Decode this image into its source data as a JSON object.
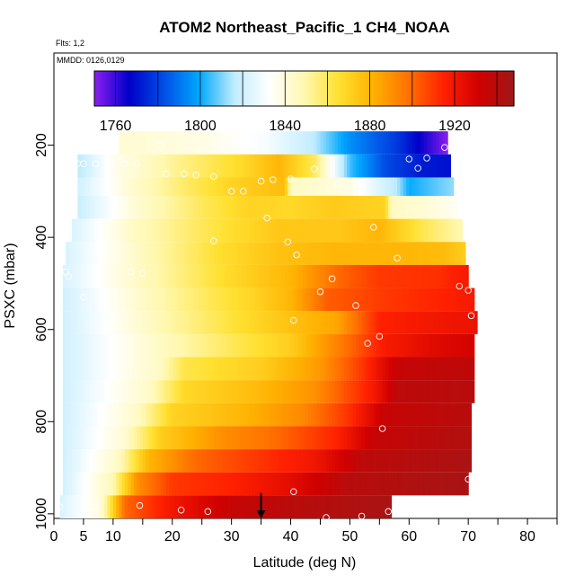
{
  "chart_data": {
    "type": "heatmap",
    "title": "ATOM2 Northeast_Pacific_1 CH4_NOAA",
    "flights_note": "Flts: 1,2",
    "dates_note": "MMDD: 0126,0129",
    "xlabel": "Latitude (deg N)",
    "ylabel": "PSXC (mbar)",
    "xlim": [
      0,
      85
    ],
    "ylim": [
      1010,
      0
    ],
    "x_ticks": [
      0,
      5,
      10,
      20,
      30,
      40,
      50,
      60,
      70,
      80
    ],
    "y_ticks": [
      200,
      400,
      600,
      800,
      1000
    ],
    "colorbar": {
      "min": 1750,
      "max": 1948,
      "tick_values": [
        1760,
        1800,
        1840,
        1880,
        1920
      ],
      "tick_labels": [
        "1760",
        "1800",
        "1840",
        "1880",
        "1920"
      ],
      "colors": [
        "#8b1ef0",
        "#0000c8",
        "#0050e6",
        "#00a8ff",
        "#c0ecff",
        "#ffffff",
        "#fff8b0",
        "#ffe030",
        "#ffb000",
        "#ff7000",
        "#ff2000",
        "#d00000",
        "#a01818"
      ]
    },
    "bands": [
      {
        "p_top": 170,
        "p_bot": 220,
        "lat_start": 11,
        "lat_end": 66.5,
        "stops": [
          [
            11,
            1842
          ],
          [
            25,
            1838
          ],
          [
            36,
            1830
          ],
          [
            44,
            1816
          ],
          [
            50,
            1795
          ],
          [
            58,
            1778
          ],
          [
            63,
            1762
          ],
          [
            66.5,
            1750
          ]
        ]
      },
      {
        "p_top": 220,
        "p_bot": 270,
        "lat_start": 4,
        "lat_end": 67,
        "stops": [
          [
            4,
            1815
          ],
          [
            10,
            1836
          ],
          [
            22,
            1855
          ],
          [
            32,
            1868
          ],
          [
            38,
            1880
          ],
          [
            44,
            1860
          ],
          [
            50,
            1805
          ],
          [
            56,
            1782
          ],
          [
            62,
            1772
          ],
          [
            67,
            1770
          ]
        ]
      },
      {
        "p_top": 270,
        "p_bot": 310,
        "lat_start": 4,
        "lat_end": 67.5,
        "stops": [
          [
            4,
            1820
          ],
          [
            12,
            1840
          ],
          [
            22,
            1858
          ],
          [
            30,
            1870
          ],
          [
            39,
            1878
          ],
          [
            40,
            1845
          ],
          [
            50,
            1838
          ],
          [
            58,
            1815
          ],
          [
            60,
            1800
          ],
          [
            67.5,
            1812
          ]
        ]
      },
      {
        "p_top": 310,
        "p_bot": 360,
        "lat_start": 4,
        "lat_end": 68,
        "stops": [
          [
            4,
            1818
          ],
          [
            14,
            1842
          ],
          [
            25,
            1860
          ],
          [
            33,
            1870
          ],
          [
            40,
            1868
          ],
          [
            47,
            1873
          ],
          [
            56,
            1870
          ],
          [
            57,
            1845
          ],
          [
            64,
            1840
          ],
          [
            68,
            1835
          ]
        ]
      },
      {
        "p_top": 360,
        "p_bot": 410,
        "lat_start": 3,
        "lat_end": 69,
        "stops": [
          [
            3,
            1822
          ],
          [
            14,
            1846
          ],
          [
            28,
            1864
          ],
          [
            38,
            1874
          ],
          [
            48,
            1874
          ],
          [
            55,
            1880
          ],
          [
            62,
            1862
          ],
          [
            69,
            1848
          ]
        ]
      },
      {
        "p_top": 410,
        "p_bot": 460,
        "lat_start": 2,
        "lat_end": 69.5,
        "stops": [
          [
            2,
            1822
          ],
          [
            15,
            1846
          ],
          [
            28,
            1866
          ],
          [
            38,
            1876
          ],
          [
            48,
            1880
          ],
          [
            58,
            1880
          ],
          [
            66,
            1878
          ],
          [
            69.5,
            1872
          ]
        ]
      },
      {
        "p_top": 460,
        "p_bot": 510,
        "lat_start": 1.5,
        "lat_end": 70,
        "stops": [
          [
            1.5,
            1822
          ],
          [
            15,
            1846
          ],
          [
            30,
            1868
          ],
          [
            40,
            1880
          ],
          [
            48,
            1900
          ],
          [
            55,
            1910
          ],
          [
            65,
            1912
          ],
          [
            70,
            1918
          ]
        ]
      },
      {
        "p_top": 510,
        "p_bot": 560,
        "lat_start": 1.5,
        "lat_end": 71,
        "stops": [
          [
            1.5,
            1820
          ],
          [
            16,
            1846
          ],
          [
            26,
            1860
          ],
          [
            34,
            1870
          ],
          [
            40,
            1880
          ],
          [
            46,
            1902
          ],
          [
            56,
            1910
          ],
          [
            66,
            1915
          ],
          [
            71,
            1918
          ]
        ]
      },
      {
        "p_top": 560,
        "p_bot": 610,
        "lat_start": 1.5,
        "lat_end": 71.5,
        "stops": [
          [
            1.5,
            1820
          ],
          [
            18,
            1848
          ],
          [
            30,
            1864
          ],
          [
            40,
            1876
          ],
          [
            48,
            1885
          ],
          [
            55,
            1915
          ],
          [
            65,
            1920
          ],
          [
            71.5,
            1922
          ]
        ]
      },
      {
        "p_top": 610,
        "p_bot": 660,
        "lat_start": 1.5,
        "lat_end": 71,
        "stops": [
          [
            1.5,
            1820
          ],
          [
            18,
            1845
          ],
          [
            30,
            1860
          ],
          [
            40,
            1872
          ],
          [
            50,
            1900
          ],
          [
            56,
            1918
          ],
          [
            64,
            1926
          ],
          [
            71,
            1930
          ]
        ]
      },
      {
        "p_top": 660,
        "p_bot": 710,
        "lat_start": 1.5,
        "lat_end": 71,
        "stops": [
          [
            1.5,
            1820
          ],
          [
            18,
            1845
          ],
          [
            22,
            1862
          ],
          [
            35,
            1872
          ],
          [
            45,
            1888
          ],
          [
            52,
            1910
          ],
          [
            58,
            1935
          ],
          [
            71,
            1938
          ]
        ]
      },
      {
        "p_top": 710,
        "p_bot": 760,
        "lat_start": 1.5,
        "lat_end": 71,
        "stops": [
          [
            1.5,
            1820
          ],
          [
            16,
            1844
          ],
          [
            22,
            1868
          ],
          [
            34,
            1878
          ],
          [
            44,
            1890
          ],
          [
            54,
            1918
          ],
          [
            58,
            1938
          ],
          [
            71,
            1940
          ]
        ]
      },
      {
        "p_top": 760,
        "p_bot": 810,
        "lat_start": 1.5,
        "lat_end": 70.5,
        "stops": [
          [
            1.5,
            1820
          ],
          [
            14,
            1844
          ],
          [
            20,
            1870
          ],
          [
            32,
            1880
          ],
          [
            42,
            1892
          ],
          [
            50,
            1912
          ],
          [
            56,
            1935
          ],
          [
            70.5,
            1940
          ]
        ]
      },
      {
        "p_top": 810,
        "p_bot": 860,
        "lat_start": 1.5,
        "lat_end": 70.5,
        "stops": [
          [
            1.5,
            1820
          ],
          [
            12,
            1842
          ],
          [
            18,
            1872
          ],
          [
            28,
            1890
          ],
          [
            38,
            1900
          ],
          [
            48,
            1915
          ],
          [
            54,
            1935
          ],
          [
            70.5,
            1942
          ]
        ]
      },
      {
        "p_top": 860,
        "p_bot": 910,
        "lat_start": 1.5,
        "lat_end": 70.5,
        "stops": [
          [
            1.5,
            1820
          ],
          [
            11,
            1845
          ],
          [
            16,
            1880
          ],
          [
            24,
            1900
          ],
          [
            34,
            1910
          ],
          [
            44,
            1920
          ],
          [
            52,
            1938
          ],
          [
            70.5,
            1944
          ]
        ]
      },
      {
        "p_top": 910,
        "p_bot": 960,
        "lat_start": 1.5,
        "lat_end": 70,
        "stops": [
          [
            1.5,
            1820
          ],
          [
            10,
            1848
          ],
          [
            14,
            1890
          ],
          [
            20,
            1910
          ],
          [
            30,
            1915
          ],
          [
            40,
            1925
          ],
          [
            50,
            1940
          ],
          [
            70,
            1945
          ]
        ]
      },
      {
        "p_top": 960,
        "p_bot": 1010,
        "lat_start": 1,
        "lat_end": 57,
        "stops": [
          [
            1,
            1822
          ],
          [
            8,
            1840
          ],
          [
            12,
            1900
          ],
          [
            20,
            1920
          ],
          [
            30,
            1935
          ],
          [
            42,
            1940
          ],
          [
            57,
            1945
          ]
        ]
      }
    ],
    "observations": [
      {
        "lat": 30,
        "p": 180
      },
      {
        "lat": 18,
        "p": 200
      },
      {
        "lat": 66,
        "p": 205
      },
      {
        "lat": 60,
        "p": 230
      },
      {
        "lat": 63,
        "p": 228
      },
      {
        "lat": 61.5,
        "p": 250
      },
      {
        "lat": 4,
        "p": 240
      },
      {
        "lat": 5,
        "p": 240
      },
      {
        "lat": 7,
        "p": 240
      },
      {
        "lat": 9.5,
        "p": 240
      },
      {
        "lat": 12,
        "p": 240
      },
      {
        "lat": 14,
        "p": 240
      },
      {
        "lat": 19,
        "p": 262
      },
      {
        "lat": 22,
        "p": 262
      },
      {
        "lat": 24,
        "p": 265
      },
      {
        "lat": 27,
        "p": 268
      },
      {
        "lat": 44,
        "p": 252
      },
      {
        "lat": 40,
        "p": 273
      },
      {
        "lat": 37,
        "p": 275
      },
      {
        "lat": 35,
        "p": 278
      },
      {
        "lat": 48,
        "p": 285
      },
      {
        "lat": 30,
        "p": 300
      },
      {
        "lat": 32,
        "p": 300
      },
      {
        "lat": 36,
        "p": 358
      },
      {
        "lat": 54,
        "p": 378
      },
      {
        "lat": 27,
        "p": 408
      },
      {
        "lat": 39.5,
        "p": 410
      },
      {
        "lat": 41,
        "p": 438
      },
      {
        "lat": 58,
        "p": 445
      },
      {
        "lat": 8,
        "p": 460
      },
      {
        "lat": 2,
        "p": 475
      },
      {
        "lat": 2.5,
        "p": 485
      },
      {
        "lat": 13,
        "p": 475
      },
      {
        "lat": 15,
        "p": 478
      },
      {
        "lat": 47,
        "p": 490
      },
      {
        "lat": 45,
        "p": 518
      },
      {
        "lat": 68.5,
        "p": 506
      },
      {
        "lat": 70,
        "p": 515
      },
      {
        "lat": 5,
        "p": 530
      },
      {
        "lat": 51,
        "p": 548
      },
      {
        "lat": 70.5,
        "p": 570
      },
      {
        "lat": 40.5,
        "p": 580
      },
      {
        "lat": 55,
        "p": 615
      },
      {
        "lat": 53,
        "p": 630
      },
      {
        "lat": 55.5,
        "p": 815
      },
      {
        "lat": 70,
        "p": 925
      },
      {
        "lat": 40.5,
        "p": 952
      },
      {
        "lat": 14.5,
        "p": 982
      },
      {
        "lat": 21.5,
        "p": 992
      },
      {
        "lat": 26,
        "p": 995
      },
      {
        "lat": 7,
        "p": 985
      },
      {
        "lat": 1,
        "p": 985
      },
      {
        "lat": 46,
        "p": 1008
      },
      {
        "lat": 52,
        "p": 1005
      },
      {
        "lat": 56.5,
        "p": 995
      }
    ],
    "marker": {
      "lat": 35,
      "p_top": 955,
      "p_bot": 1010
    }
  }
}
